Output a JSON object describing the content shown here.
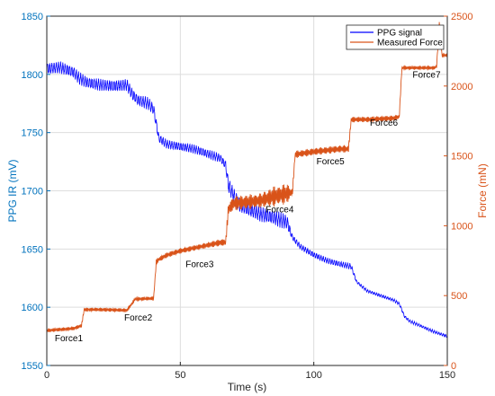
{
  "chart_data": {
    "type": "line",
    "xlabel": "Time (s)",
    "ylabel_left": "PPG IR (mV)",
    "ylabel_right": "Force (mN)",
    "xlim": [
      0,
      150
    ],
    "ylim_left": [
      1550,
      1850
    ],
    "ylim_right": [
      0,
      2500
    ],
    "xticks": [
      "0",
      "50",
      "100",
      "150"
    ],
    "yticks_left": [
      "1550",
      "1600",
      "1650",
      "1700",
      "1750",
      "1800",
      "1850"
    ],
    "yticks_right": [
      "0",
      "500",
      "1000",
      "1500",
      "2000",
      "2500"
    ],
    "grid": true,
    "legend_position": "top-right",
    "colors": {
      "ppg": "#0000ff",
      "force": "#d95319",
      "left_axis": "#0072bd",
      "right_axis": "#d95319",
      "grid": "#dddddd"
    },
    "series": [
      {
        "name": "PPG signal",
        "axis": "left",
        "x": [
          0,
          5,
          10,
          12,
          15,
          20,
          25,
          30,
          32,
          34,
          38,
          40,
          42,
          45,
          50,
          55,
          60,
          65,
          67,
          68,
          70,
          72,
          75,
          80,
          85,
          90,
          92,
          95,
          100,
          105,
          110,
          114,
          116,
          118,
          120,
          125,
          130,
          132,
          134,
          136,
          140,
          145,
          150
        ],
        "y": [
          1805,
          1806,
          1802,
          1797,
          1793,
          1791,
          1790,
          1791,
          1783,
          1778,
          1775,
          1770,
          1745,
          1740,
          1738,
          1736,
          1732,
          1728,
          1722,
          1705,
          1696,
          1688,
          1685,
          1680,
          1677,
          1673,
          1660,
          1652,
          1645,
          1640,
          1637,
          1635,
          1622,
          1618,
          1614,
          1610,
          1606,
          1603,
          1592,
          1588,
          1584,
          1579,
          1575
        ],
        "amplitude": [
          4,
          4,
          4,
          4,
          4,
          4,
          4,
          4,
          4,
          4,
          4,
          4,
          3,
          3,
          3,
          3,
          3,
          3,
          3,
          5,
          5,
          5,
          5,
          5,
          5,
          5,
          2,
          2,
          2,
          2,
          2,
          2,
          1,
          1,
          1,
          1,
          1,
          1,
          1,
          1,
          1,
          1,
          1
        ]
      },
      {
        "name": "Measured Force",
        "axis": "right",
        "x": [
          0,
          10,
          13,
          14,
          20,
          30,
          32,
          33,
          40,
          41,
          42,
          45,
          50,
          55,
          60,
          65,
          67,
          68,
          70,
          75,
          80,
          85,
          90,
          92,
          93,
          100,
          105,
          110,
          113,
          114,
          120,
          130,
          132,
          133,
          140,
          145,
          146,
          147,
          148,
          150
        ],
        "y": [
          250,
          265,
          285,
          400,
          400,
          395,
          445,
          475,
          480,
          740,
          760,
          790,
          820,
          840,
          860,
          880,
          880,
          1120,
          1160,
          1170,
          1180,
          1210,
          1230,
          1240,
          1510,
          1530,
          1540,
          1550,
          1550,
          1760,
          1760,
          1770,
          1780,
          2130,
          2130,
          2130,
          2140,
          2450,
          2220,
          2220
        ],
        "amplitude": [
          10,
          10,
          10,
          10,
          10,
          10,
          10,
          10,
          10,
          15,
          15,
          15,
          15,
          15,
          15,
          20,
          20,
          40,
          40,
          40,
          40,
          55,
          55,
          20,
          20,
          20,
          20,
          20,
          20,
          15,
          15,
          15,
          15,
          10,
          10,
          10,
          10,
          10,
          10,
          10
        ]
      }
    ],
    "annotations": [
      {
        "text": "Force1",
        "x": 3,
        "y_right": 175
      },
      {
        "text": "Force2",
        "x": 29,
        "y_right": 320
      },
      {
        "text": "Force3",
        "x": 52,
        "y_right": 705
      },
      {
        "text": "Force4",
        "x": 82,
        "y_right": 1095
      },
      {
        "text": "Force5",
        "x": 101,
        "y_right": 1440
      },
      {
        "text": "Force6",
        "x": 121,
        "y_right": 1715
      },
      {
        "text": "Force7",
        "x": 137,
        "y_right": 2060
      }
    ]
  }
}
